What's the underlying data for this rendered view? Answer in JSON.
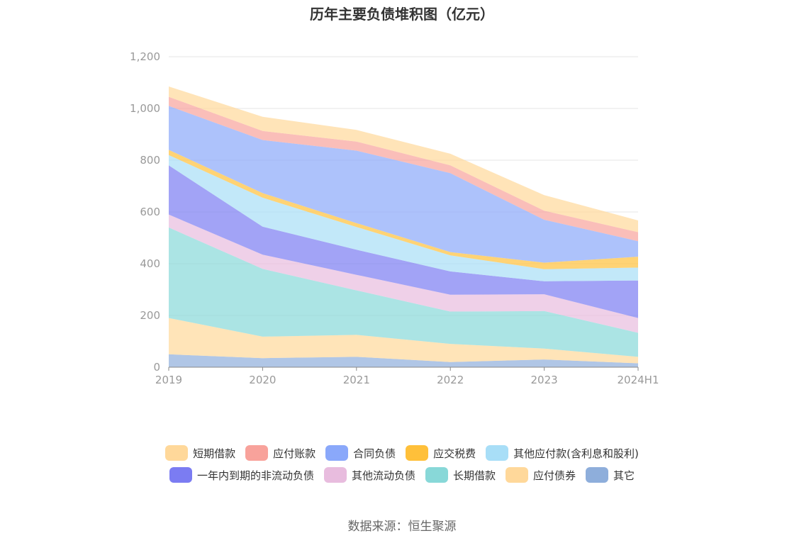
{
  "chart_data": {
    "type": "area",
    "stacked": true,
    "title": "历年主要负债堆积图（亿元）",
    "categories": [
      "2019",
      "2020",
      "2021",
      "2022",
      "2023",
      "2024H1"
    ],
    "ylim": [
      0,
      1200
    ],
    "yticks": [
      "0",
      "200",
      "400",
      "600",
      "800",
      "1,000",
      "1,200"
    ],
    "ytick_values": [
      0,
      200,
      400,
      600,
      800,
      1000,
      1200
    ],
    "grid": true,
    "legend_position": "bottom",
    "series": [
      {
        "name": "其它",
        "color": "#8eaedb",
        "values": [
          50,
          35,
          40,
          20,
          30,
          15
        ]
      },
      {
        "name": "应付债券",
        "color": "#ffd89a",
        "values": [
          140,
          83,
          85,
          70,
          42,
          25
        ]
      },
      {
        "name": "长期借款",
        "color": "#88d8d8",
        "values": [
          350,
          262,
          172,
          125,
          145,
          93
        ]
      },
      {
        "name": "其他流动负债",
        "color": "#e8bcde",
        "values": [
          50,
          55,
          60,
          65,
          65,
          57
        ]
      },
      {
        "name": "一年内到期的非流动负债",
        "color": "#7b7cf2",
        "values": [
          190,
          108,
          97,
          90,
          50,
          145
        ]
      },
      {
        "name": "其他应付款(含利息和股利)",
        "color": "#a8def7",
        "values": [
          40,
          112,
          88,
          62,
          47,
          50
        ]
      },
      {
        "name": "应交税费",
        "color": "#ffc03a",
        "values": [
          20,
          18,
          15,
          13,
          25,
          42
        ]
      },
      {
        "name": "合同负债",
        "color": "#8aa8fa",
        "values": [
          170,
          205,
          280,
          305,
          166,
          60
        ]
      },
      {
        "name": "应付账款",
        "color": "#f8a29b",
        "values": [
          35,
          35,
          35,
          30,
          35,
          35
        ]
      },
      {
        "name": "短期借款",
        "color": "#ffd89a",
        "values": [
          40,
          55,
          45,
          45,
          60,
          45
        ]
      }
    ]
  },
  "legend": {
    "row1": [
      "短期借款",
      "应付账款",
      "合同负债",
      "应交税费",
      "其他应付款(含利息和股利)"
    ],
    "row2": [
      "一年内到期的非流动负债",
      "其他流动负债",
      "长期借款",
      "应付债券",
      "其它"
    ]
  },
  "source": "数据来源：恒生聚源"
}
